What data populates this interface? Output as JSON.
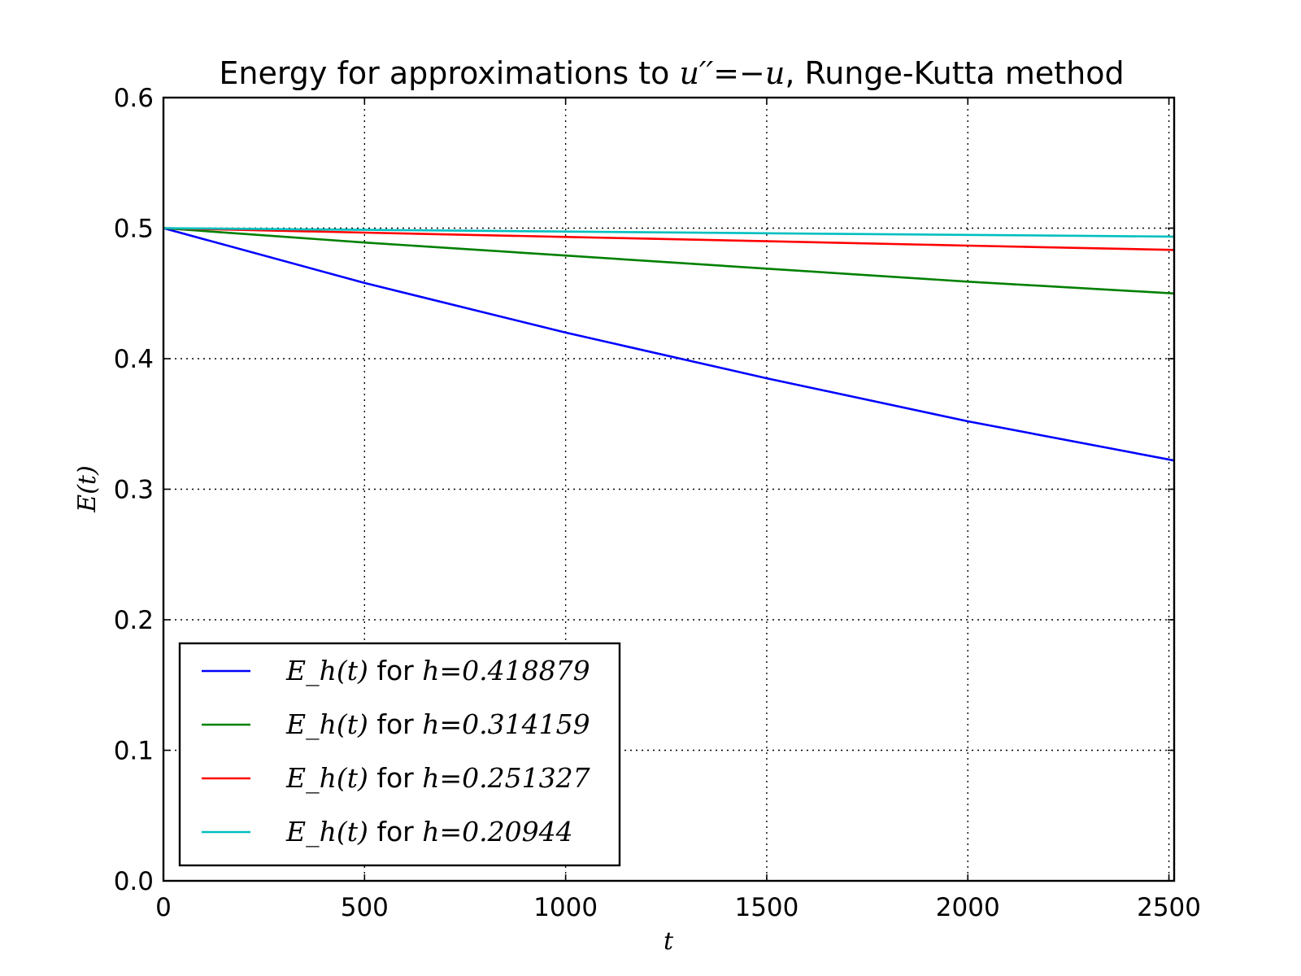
{
  "chart_data": {
    "type": "line",
    "title": "Energy for approximations to u′′=−u, Runge-Kutta method",
    "title_parts": {
      "prefix": "Energy for approximations to ",
      "math": "u′′=−u",
      "suffix": ", Runge-Kutta method"
    },
    "xlabel": "t",
    "ylabel": "E(t)",
    "xlim": [
      0,
      2513
    ],
    "ylim": [
      0.0,
      0.6
    ],
    "x_ticks": [
      0,
      500,
      1000,
      1500,
      2000,
      2500
    ],
    "x_tick_labels": [
      "0",
      "500",
      "1000",
      "1500",
      "2000",
      "2500"
    ],
    "y_ticks": [
      0.0,
      0.1,
      0.2,
      0.3,
      0.4,
      0.5,
      0.6
    ],
    "y_tick_labels": [
      "0.0",
      "0.1",
      "0.2",
      "0.3",
      "0.4",
      "0.5",
      "0.6"
    ],
    "grid": true,
    "legend_position": "lower-left",
    "series": [
      {
        "name": "E_h(t) for h=0.418879",
        "legend": {
          "math": "E_h(t)",
          "word": "for",
          "hlabel": "h=0.418879"
        },
        "color": "#0000ff",
        "x": [
          0,
          500,
          1000,
          1500,
          2000,
          2513
        ],
        "y": [
          0.5,
          0.458,
          0.42,
          0.385,
          0.352,
          0.322
        ]
      },
      {
        "name": "E_h(t) for h=0.314159",
        "legend": {
          "math": "E_h(t)",
          "word": "for",
          "hlabel": "h=0.314159"
        },
        "color": "#008000",
        "x": [
          0,
          500,
          1000,
          1500,
          2000,
          2513
        ],
        "y": [
          0.5,
          0.489,
          0.479,
          0.469,
          0.459,
          0.45
        ]
      },
      {
        "name": "E_h(t) for h=0.251327",
        "legend": {
          "math": "E_h(t)",
          "word": "for",
          "hlabel": "h=0.251327"
        },
        "color": "#ff0000",
        "x": [
          0,
          500,
          1000,
          1500,
          2000,
          2513
        ],
        "y": [
          0.5,
          0.4966,
          0.4933,
          0.49,
          0.4866,
          0.4833
        ]
      },
      {
        "name": "E_h(t) for h=0.20944",
        "legend": {
          "math": "E_h(t)",
          "word": "for",
          "hlabel": "h=0.20944"
        },
        "color": "#00bfbf",
        "x": [
          0,
          500,
          1000,
          1500,
          2000,
          2513
        ],
        "y": [
          0.5,
          0.4987,
          0.4974,
          0.4961,
          0.4948,
          0.4935
        ]
      }
    ]
  }
}
